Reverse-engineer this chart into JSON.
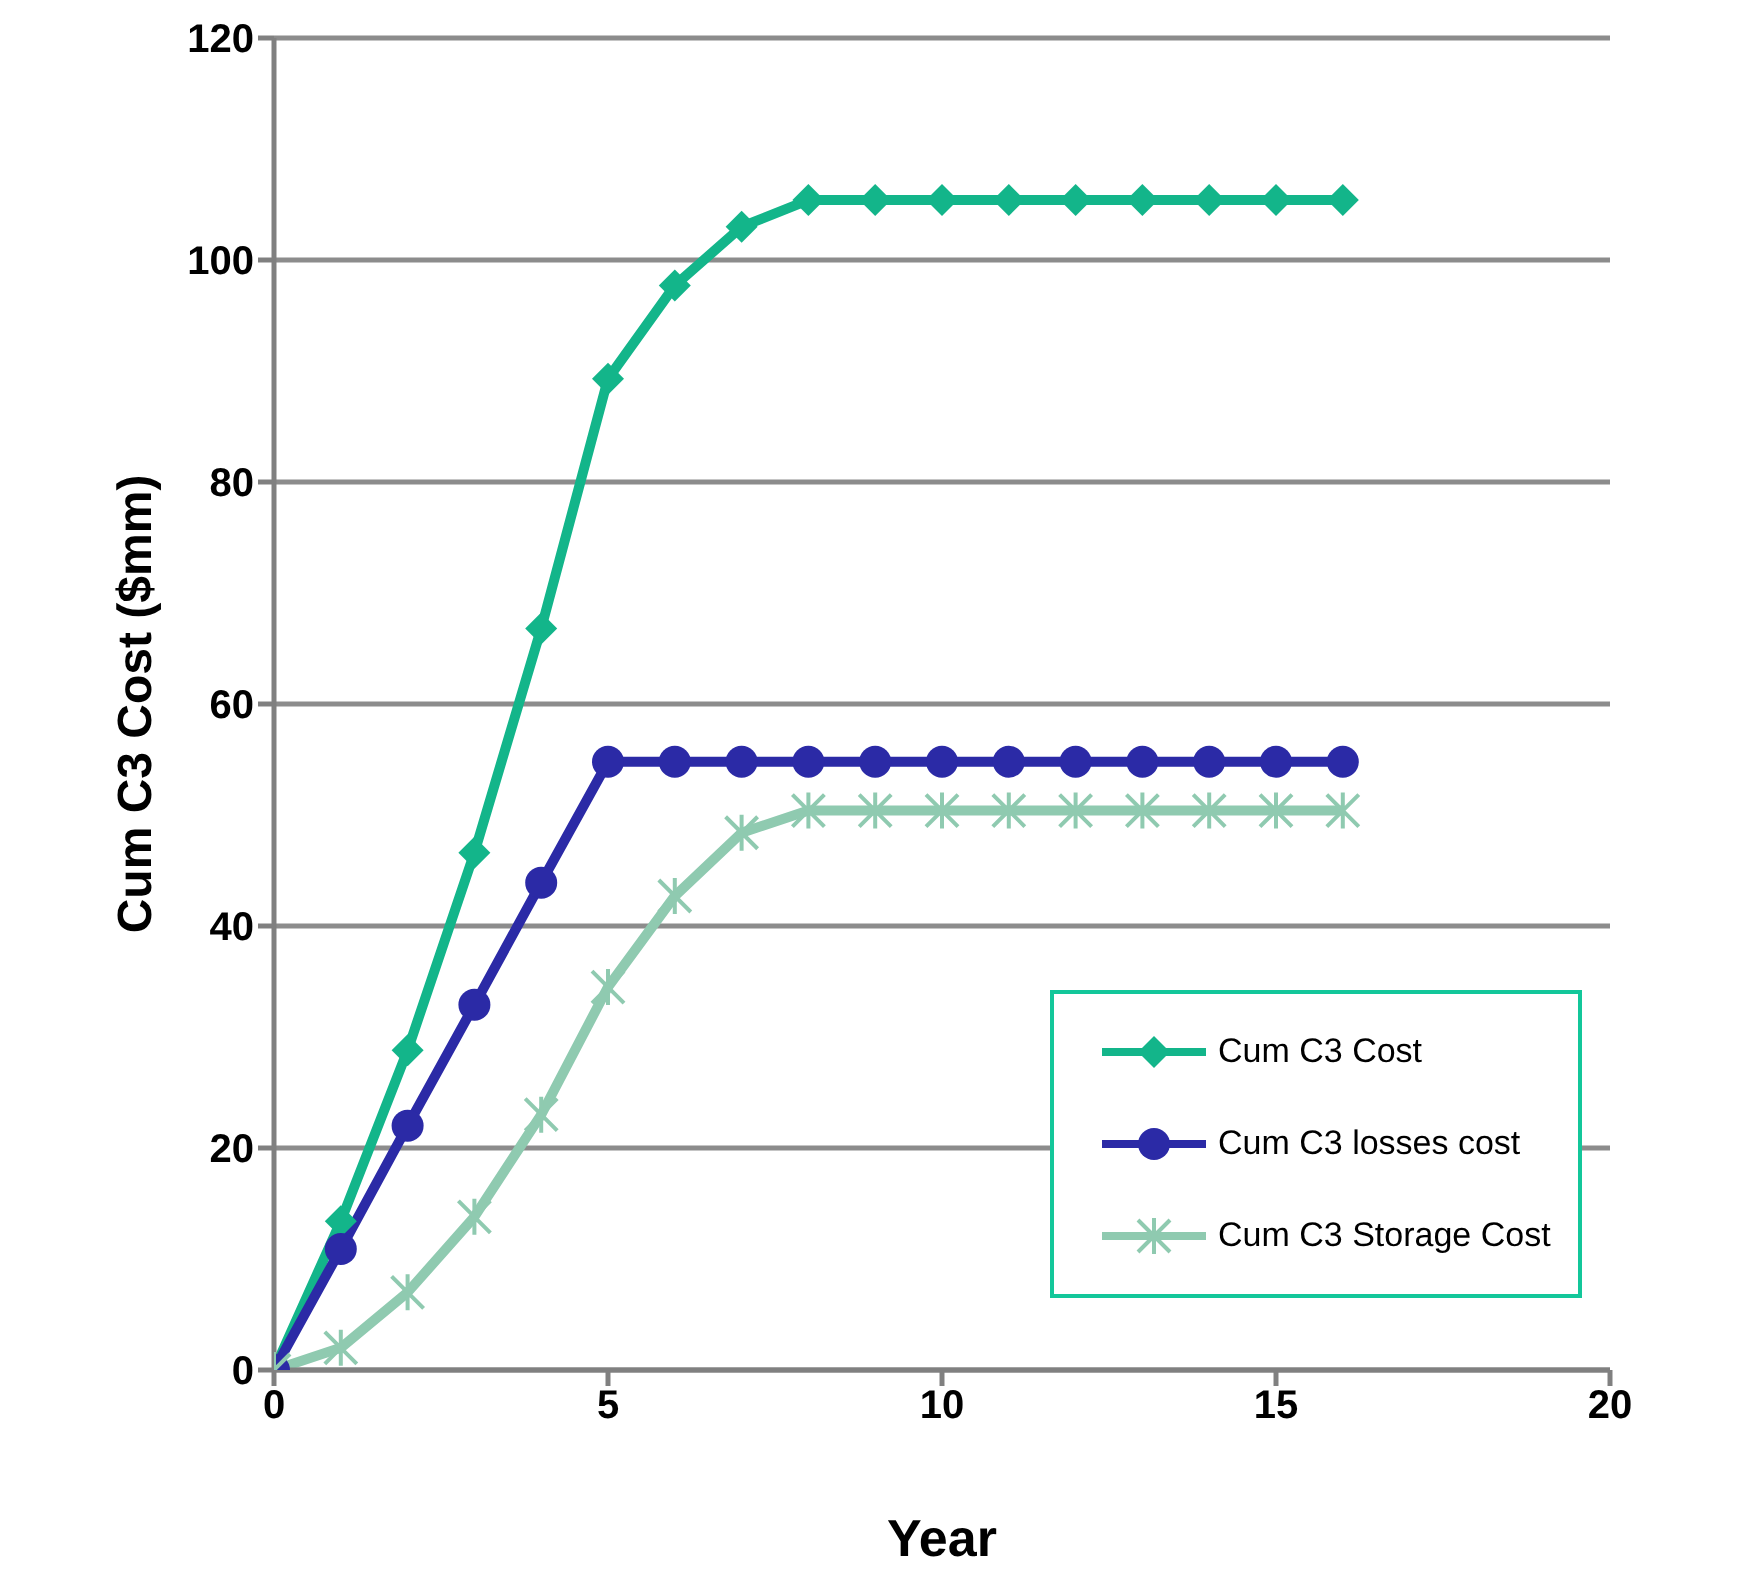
{
  "chart_data": {
    "type": "line",
    "xlabel": "Year",
    "ylabel": "Cum C3  Cost  ($mm)",
    "x": [
      0,
      1,
      2,
      3,
      4,
      5,
      6,
      7,
      8,
      9,
      10,
      11,
      12,
      13,
      14,
      15,
      16
    ],
    "series": [
      {
        "name": "Cum C3 Cost",
        "color": "#13b58a",
        "marker": "diamond",
        "values": [
          0,
          13.4,
          28.8,
          46.6,
          66.8,
          89.3,
          97.7,
          103,
          105.4,
          105.4,
          105.4,
          105.4,
          105.4,
          105.4,
          105.4,
          105.4,
          105.4
        ]
      },
      {
        "name": "Cum C3 losses cost",
        "color": "#2b2aa6",
        "marker": "circle",
        "values": [
          0,
          10.9,
          22,
          32.9,
          43.9,
          54.8,
          54.8,
          54.8,
          54.8,
          54.8,
          54.8,
          54.8,
          54.8,
          54.8,
          54.8,
          54.8,
          54.8
        ]
      },
      {
        "name": "Cum C3 Storage Cost",
        "color": "#8fcab0",
        "marker": "cross",
        "values": [
          0,
          2,
          7,
          13.8,
          23,
          34.5,
          42.7,
          48.4,
          50.4,
          50.4,
          50.4,
          50.4,
          50.4,
          50.4,
          50.4,
          50.4,
          50.4
        ]
      }
    ],
    "xlim": [
      0,
      20
    ],
    "xticks": [
      0,
      5,
      10,
      15,
      20
    ],
    "ylim": [
      0,
      120
    ],
    "yticks": [
      0,
      20,
      40,
      60,
      80,
      100,
      120
    ],
    "grid": "y",
    "legend": "bottom right",
    "line_style": "solid"
  }
}
